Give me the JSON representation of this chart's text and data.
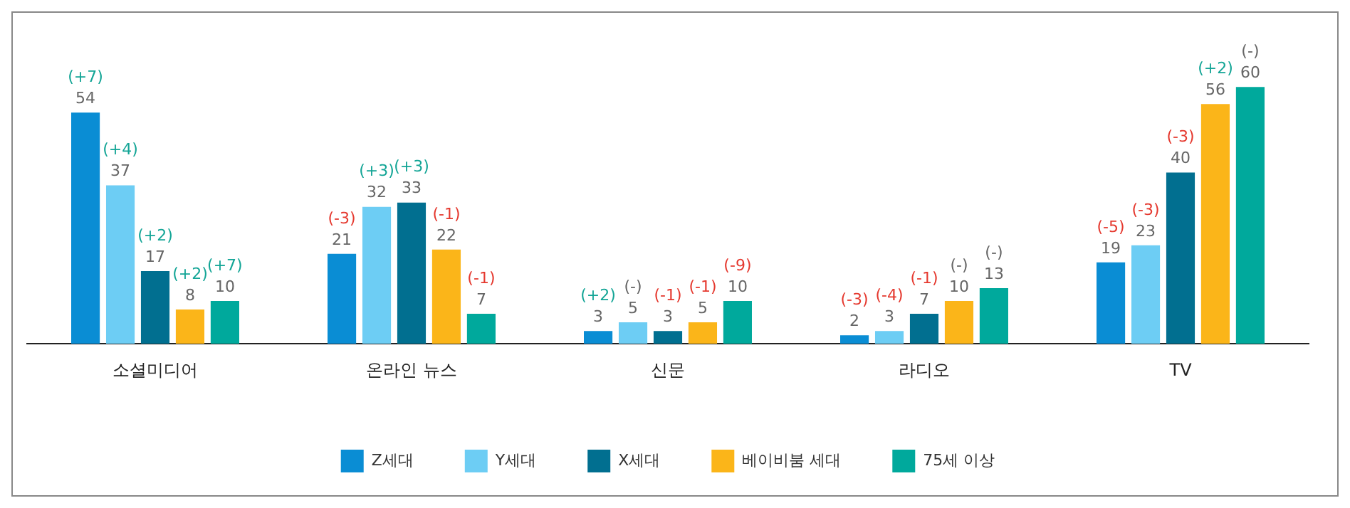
{
  "chart_data": {
    "type": "bar",
    "categories": [
      "소셜미디어",
      "온라인 뉴스",
      "신문",
      "라디오",
      "TV"
    ],
    "series": [
      {
        "name": "Z세대",
        "color": "#0a8dd4",
        "values": [
          54,
          21,
          3,
          2,
          19
        ]
      },
      {
        "name": "Y세대",
        "color": "#6dcdf4",
        "values": [
          37,
          32,
          5,
          3,
          23
        ]
      },
      {
        "name": "X세대",
        "color": "#016f90",
        "values": [
          17,
          33,
          3,
          7,
          40
        ]
      },
      {
        "name": "베이비붐 세대",
        "color": "#fbb519",
        "values": [
          8,
          22,
          5,
          10,
          56
        ]
      },
      {
        "name": "75세 이상",
        "color": "#00a99c",
        "values": [
          10,
          7,
          10,
          13,
          60
        ]
      }
    ],
    "annotations": [
      "(+7)",
      "(+4)",
      "(+2)",
      "(+2)",
      "(+7)",
      "(-3)",
      "(+3)",
      "(+3)",
      "(-1)",
      "(-1)",
      "(+2)",
      "(-)",
      "(-1)",
      "(-1)",
      "(-9)",
      "(-3)",
      "(-4)",
      "(-1)",
      "(-)",
      "(-)",
      "(-5)",
      "(-3)",
      "(-3)",
      "(+2)",
      "(-)"
    ],
    "data_labels": true,
    "grid": false,
    "legend": "bottom"
  }
}
